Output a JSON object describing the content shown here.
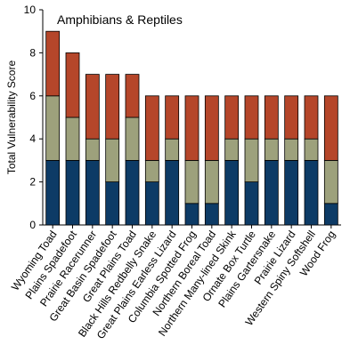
{
  "chart_data": {
    "type": "bar",
    "stacked": true,
    "title": "Amphibians & Reptiles",
    "xlabel": "",
    "ylabel": "Total Vulnerability Score",
    "ylim": [
      0,
      10
    ],
    "yticks": [
      0,
      2,
      4,
      6,
      8,
      10
    ],
    "grid": false,
    "legend": "none",
    "categories": [
      "Wyoming Toad",
      "Plains Spadefoot",
      "Prairie Racerunner",
      "Great Basin Spadefoot",
      "Great Plains Toad",
      "Black Hills Redbelly Snake",
      "Great Plains Earless Lizard",
      "Columbia Spotted Frog",
      "Northern Boreal Toad",
      "Northern Many-lined Skink",
      "Ornate Box Turtle",
      "Plains Gartersnake",
      "Prairie Lizard",
      "Western Spiny Softshell",
      "Wood Frog"
    ],
    "series": [
      {
        "color": "#0d3b66",
        "values": [
          3,
          3,
          3,
          2,
          3,
          2,
          3,
          1,
          1,
          3,
          2,
          3,
          3,
          3,
          1
        ]
      },
      {
        "color": "#9da17c",
        "values": [
          3,
          2,
          1,
          2,
          2,
          1,
          1,
          2,
          2,
          1,
          2,
          1,
          1,
          1,
          2
        ]
      },
      {
        "color": "#b5462a",
        "values": [
          3,
          3,
          3,
          3,
          2,
          3,
          2,
          3,
          3,
          2,
          2,
          2,
          2,
          2,
          3
        ]
      }
    ]
  }
}
